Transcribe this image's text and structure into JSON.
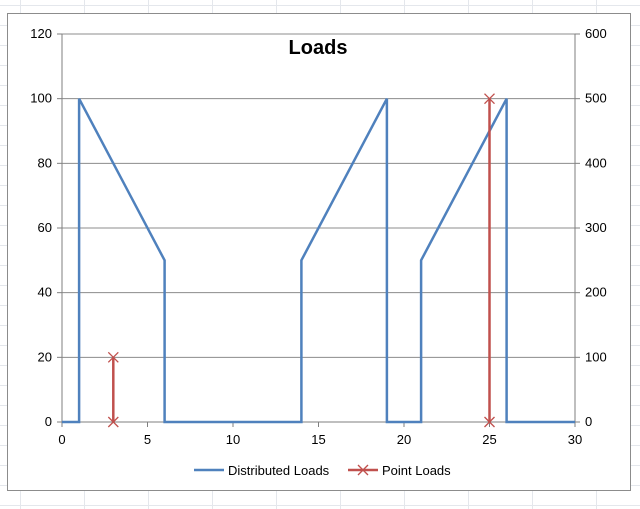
{
  "chart_data": {
    "type": "line",
    "title": "Loads",
    "xlabel": "",
    "ylabel": "",
    "y2label": "",
    "xlim": [
      0,
      30
    ],
    "ylim": [
      0,
      120
    ],
    "y2lim": [
      0,
      600
    ],
    "x_ticks": [
      "0",
      "5",
      "10",
      "15",
      "20",
      "25",
      "30"
    ],
    "y_ticks": [
      "0",
      "20",
      "40",
      "60",
      "80",
      "100",
      "120"
    ],
    "y2_ticks": [
      "0",
      "100",
      "200",
      "300",
      "400",
      "500",
      "600"
    ],
    "grid": true,
    "legend_position": "bottom",
    "series": [
      {
        "name": "Distributed Loads",
        "axis": "left",
        "color": "#4f81bd",
        "marker": "none",
        "points": [
          [
            0,
            0
          ],
          [
            1,
            0
          ],
          [
            1,
            100
          ],
          [
            6,
            50
          ],
          [
            6,
            0
          ],
          [
            14,
            0
          ],
          [
            14,
            50
          ],
          [
            19,
            100
          ],
          [
            19,
            0
          ],
          [
            21,
            0
          ],
          [
            21,
            50
          ],
          [
            26,
            100
          ],
          [
            26,
            0
          ],
          [
            30,
            0
          ]
        ]
      },
      {
        "name": "Point Loads",
        "axis": "right",
        "color": "#c0504d",
        "marker": "x",
        "segments": [
          [
            [
              3,
              0
            ],
            [
              3,
              100
            ]
          ],
          [
            [
              25,
              0
            ],
            [
              25,
              500
            ]
          ]
        ]
      }
    ]
  }
}
